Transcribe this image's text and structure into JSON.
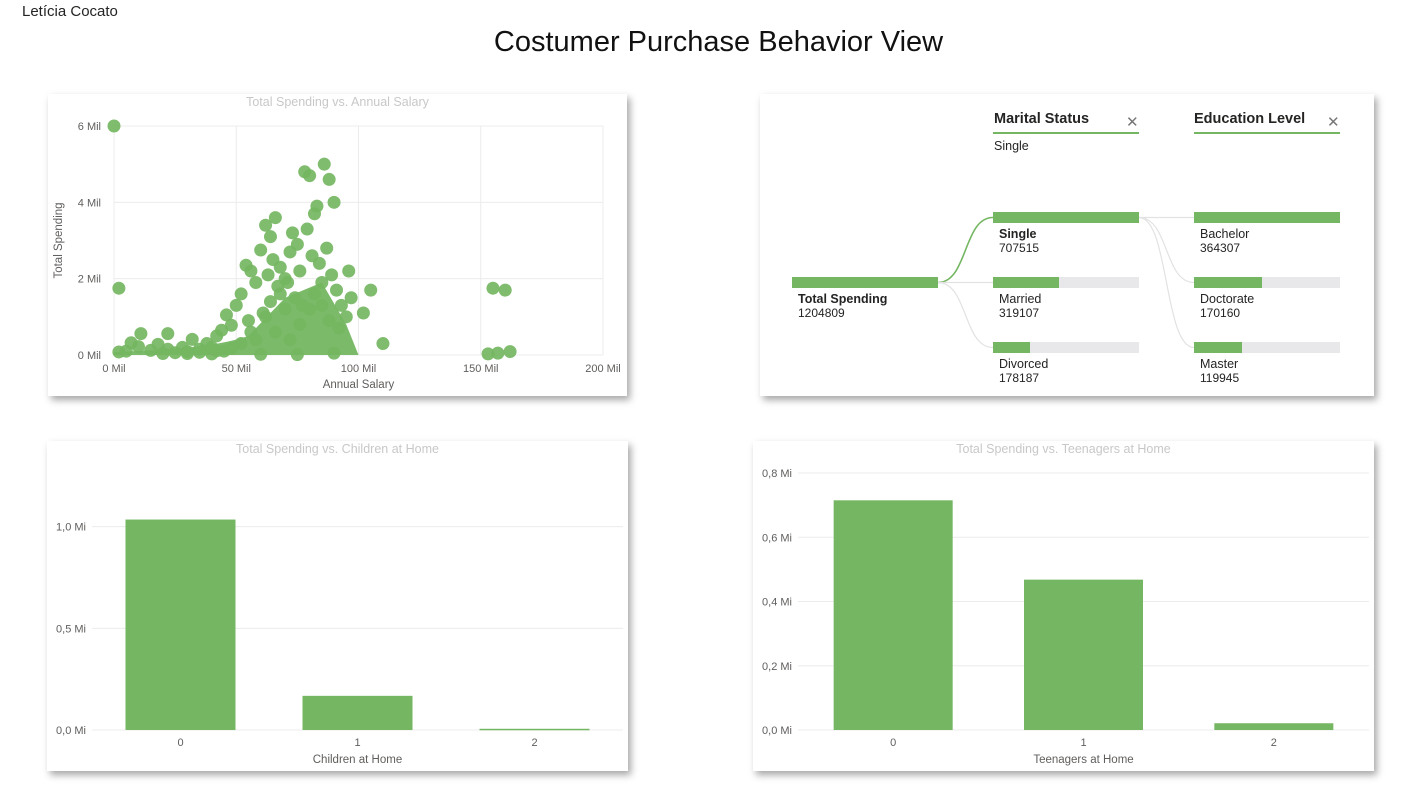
{
  "author": "Letícia Cocato",
  "page_title": "Costumer Purchase Behavior View",
  "colors": {
    "accent": "#74b661",
    "bar_bg": "#e8e8ea",
    "grid": "#ececec"
  },
  "decomposition": {
    "levels": [
      {
        "title": "Marital Status",
        "selected": "Single",
        "close_icon": "close-icon"
      },
      {
        "title": "Education Level",
        "selected": "",
        "close_icon": "close-icon"
      }
    ],
    "root": {
      "label": "Total Spending",
      "value": "1204809"
    },
    "marital": [
      {
        "label": "Single",
        "value": "707515",
        "fraction": 1.0,
        "selected": true
      },
      {
        "label": "Married",
        "value": "319107",
        "fraction": 0.451
      },
      {
        "label": "Divorced",
        "value": "178187",
        "fraction": 0.252
      }
    ],
    "education": [
      {
        "label": "Bachelor",
        "value": "364307",
        "fraction": 1.0
      },
      {
        "label": "Doctorate",
        "value": "170160",
        "fraction": 0.467
      },
      {
        "label": "Master",
        "value": "119945",
        "fraction": 0.329
      }
    ]
  },
  "chart_data": [
    {
      "type": "scatter",
      "title": "Total Spending vs. Annual Salary",
      "xlabel": "Annual Salary",
      "ylabel": "Total Spending",
      "xlim": [
        0,
        200000
      ],
      "ylim": [
        0,
        6000000
      ],
      "x_ticks": [
        0,
        50000,
        100000,
        150000,
        200000
      ],
      "x_tick_labels": [
        "0 Mil",
        "50 Mil",
        "100 Mil",
        "150 Mil",
        "200 Mil"
      ],
      "y_ticks": [
        0,
        2000000,
        4000000,
        6000000
      ],
      "y_tick_labels": [
        "0 Mil",
        "2 Mil",
        "4 Mil",
        "6 Mil"
      ],
      "grid": true,
      "points": [
        [
          0,
          6000000
        ],
        [
          2000,
          1750000
        ],
        [
          2000,
          80000
        ],
        [
          5000,
          100000
        ],
        [
          7000,
          320000
        ],
        [
          10000,
          220000
        ],
        [
          11000,
          560000
        ],
        [
          15000,
          120000
        ],
        [
          18000,
          280000
        ],
        [
          20000,
          40000
        ],
        [
          22000,
          150000
        ],
        [
          25000,
          60000
        ],
        [
          28000,
          200000
        ],
        [
          30000,
          90000
        ],
        [
          32000,
          410000
        ],
        [
          22000,
          560000
        ],
        [
          35000,
          150000
        ],
        [
          38000,
          300000
        ],
        [
          40000,
          200000
        ],
        [
          42000,
          500000
        ],
        [
          44000,
          650000
        ],
        [
          46000,
          1050000
        ],
        [
          48000,
          780000
        ],
        [
          50000,
          1300000
        ],
        [
          52000,
          1600000
        ],
        [
          54000,
          2350000
        ],
        [
          55000,
          900000
        ],
        [
          56000,
          2200000
        ],
        [
          58000,
          1900000
        ],
        [
          60000,
          2750000
        ],
        [
          61000,
          1100000
        ],
        [
          62000,
          3400000
        ],
        [
          63000,
          2100000
        ],
        [
          64000,
          3100000
        ],
        [
          65000,
          2500000
        ],
        [
          66000,
          3600000
        ],
        [
          67000,
          1800000
        ],
        [
          68000,
          2300000
        ],
        [
          70000,
          2000000
        ],
        [
          72000,
          2700000
        ],
        [
          73000,
          3200000
        ],
        [
          74000,
          1500000
        ],
        [
          75000,
          2900000
        ],
        [
          76000,
          2200000
        ],
        [
          78000,
          4800000
        ],
        [
          79000,
          3300000
        ],
        [
          80000,
          4700000
        ],
        [
          81000,
          2600000
        ],
        [
          82000,
          3700000
        ],
        [
          83000,
          3900000
        ],
        [
          84000,
          2400000
        ],
        [
          86000,
          5000000
        ],
        [
          88000,
          4600000
        ],
        [
          90000,
          4000000
        ],
        [
          85000,
          1900000
        ],
        [
          87000,
          2800000
        ],
        [
          89000,
          2100000
        ],
        [
          91000,
          1700000
        ],
        [
          93000,
          1300000
        ],
        [
          95000,
          1000000
        ],
        [
          96000,
          2200000
        ],
        [
          97000,
          1500000
        ],
        [
          102000,
          1100000
        ],
        [
          105000,
          1700000
        ],
        [
          110000,
          300000
        ],
        [
          40000,
          30000
        ],
        [
          45000,
          100000
        ],
        [
          58000,
          400000
        ],
        [
          62000,
          1000000
        ],
        [
          66000,
          600000
        ],
        [
          70000,
          1200000
        ],
        [
          72000,
          400000
        ],
        [
          76000,
          800000
        ],
        [
          80000,
          1200000
        ],
        [
          60000,
          20000
        ],
        [
          75000,
          10000
        ],
        [
          90000,
          50000
        ],
        [
          155000,
          1750000
        ],
        [
          160000,
          1700000
        ],
        [
          153000,
          30000
        ],
        [
          157000,
          50000
        ],
        [
          162000,
          90000
        ],
        [
          30000,
          40000
        ],
        [
          35000,
          70000
        ],
        [
          42000,
          110000
        ],
        [
          48000,
          180000
        ],
        [
          52000,
          300000
        ],
        [
          56000,
          600000
        ],
        [
          64000,
          1400000
        ],
        [
          68000,
          1600000
        ],
        [
          71000,
          1900000
        ],
        [
          77000,
          1300000
        ],
        [
          82000,
          1600000
        ],
        [
          85000,
          1300000
        ],
        [
          88000,
          900000
        ],
        [
          92000,
          700000
        ]
      ]
    },
    {
      "type": "bar",
      "title": "Total Spending vs. Children at Home",
      "xlabel": "Children at Home",
      "ylabel": "",
      "categories": [
        "0",
        "1",
        "2"
      ],
      "values": [
        1035000,
        168000,
        6000
      ],
      "ylim": [
        0,
        1200000
      ],
      "y_ticks": [
        0,
        500000,
        1000000
      ],
      "y_tick_labels": [
        "0,0 Mi",
        "0,5 Mi",
        "1,0 Mi"
      ],
      "grid": true
    },
    {
      "type": "bar",
      "title": "Total Spending vs. Teenagers at Home",
      "xlabel": "Teenagers at Home",
      "ylabel": "",
      "categories": [
        "0",
        "1",
        "2"
      ],
      "values": [
        715000,
        468000,
        21000
      ],
      "ylim": [
        0,
        800000
      ],
      "y_ticks": [
        0,
        200000,
        400000,
        600000,
        800000
      ],
      "y_tick_labels": [
        "0,0 Mi",
        "0,2 Mi",
        "0,4 Mi",
        "0,6 Mi",
        "0,8 Mi"
      ],
      "grid": true
    }
  ]
}
